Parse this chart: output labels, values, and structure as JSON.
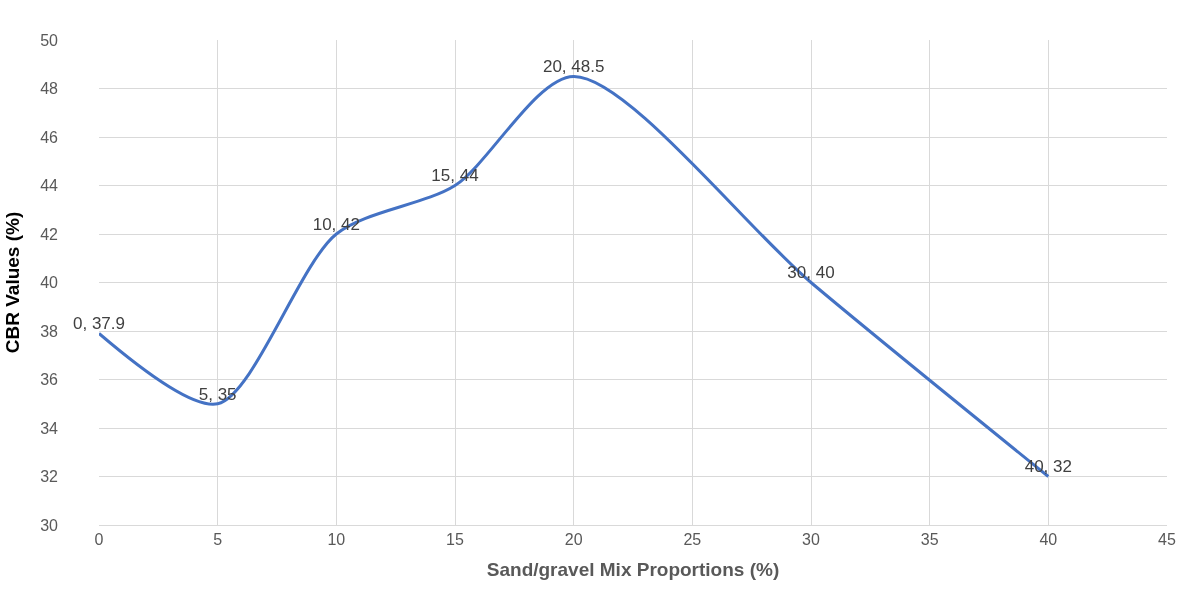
{
  "chart_data": {
    "type": "line",
    "xlabel": "Sand/gravel Mix Proportions (%)",
    "ylabel": "CBR Values (%)",
    "x": [
      0,
      5,
      10,
      15,
      20,
      30,
      40
    ],
    "series": [
      {
        "color": "#4472c4",
        "values": [
          37.9,
          35,
          42,
          44,
          48.5,
          40,
          32
        ],
        "value_labels": [
          "0, 37.9",
          "5, 35",
          "10, 42",
          "15, 44",
          "20, 48.5",
          "30, 40",
          "40, 32"
        ]
      }
    ],
    "xlim": [
      0,
      45
    ],
    "xticks": [
      0,
      5,
      10,
      15,
      20,
      25,
      30,
      35,
      40,
      45
    ],
    "ylim": [
      30,
      50
    ],
    "yticks": [
      30,
      32,
      34,
      36,
      38,
      40,
      42,
      44,
      46,
      48,
      50
    ],
    "grid": true,
    "marker": "none",
    "line_style": "solid",
    "legend": false
  }
}
